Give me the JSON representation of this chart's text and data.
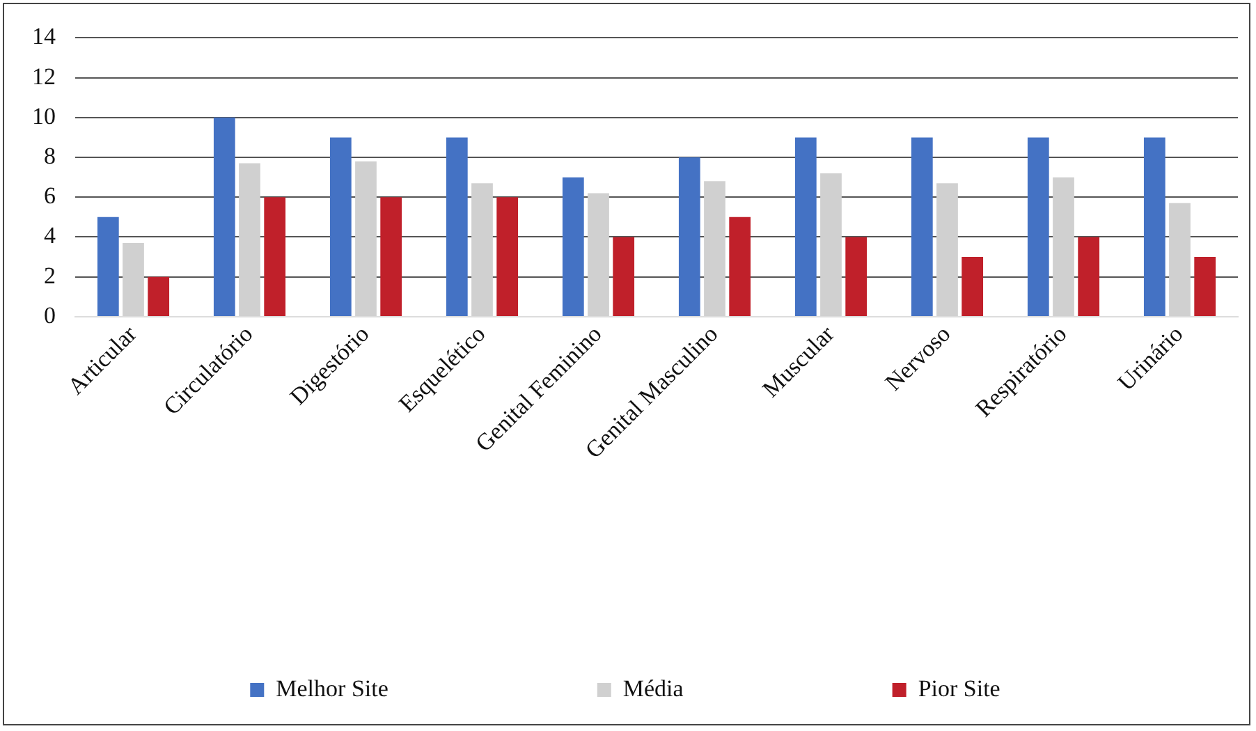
{
  "chart_data": {
    "type": "bar",
    "categories": [
      "Articular",
      "Circulatório",
      "Digestório",
      "Esquelético",
      "Genital Feminino",
      "Genital Masculino",
      "Muscular",
      "Nervoso",
      "Respiratório",
      "Urinário"
    ],
    "series": [
      {
        "name": "Melhor Site",
        "color": "#4472c4",
        "values": [
          5,
          10,
          9,
          9,
          7,
          8,
          9,
          9,
          9,
          9
        ]
      },
      {
        "name": "Média",
        "color": "#d0d0d0",
        "values": [
          3.7,
          7.7,
          7.8,
          6.7,
          6.2,
          6.8,
          7.2,
          6.7,
          7.0,
          5.7
        ]
      },
      {
        "name": "Pior Site",
        "color": "#c0202a",
        "values": [
          2,
          6,
          6,
          6,
          4,
          5,
          4,
          3,
          4,
          3
        ]
      }
    ],
    "ylim": [
      0,
      14
    ],
    "yticks": [
      0,
      2,
      4,
      6,
      8,
      10,
      12,
      14
    ],
    "grid": "y",
    "legend": "bottom"
  }
}
